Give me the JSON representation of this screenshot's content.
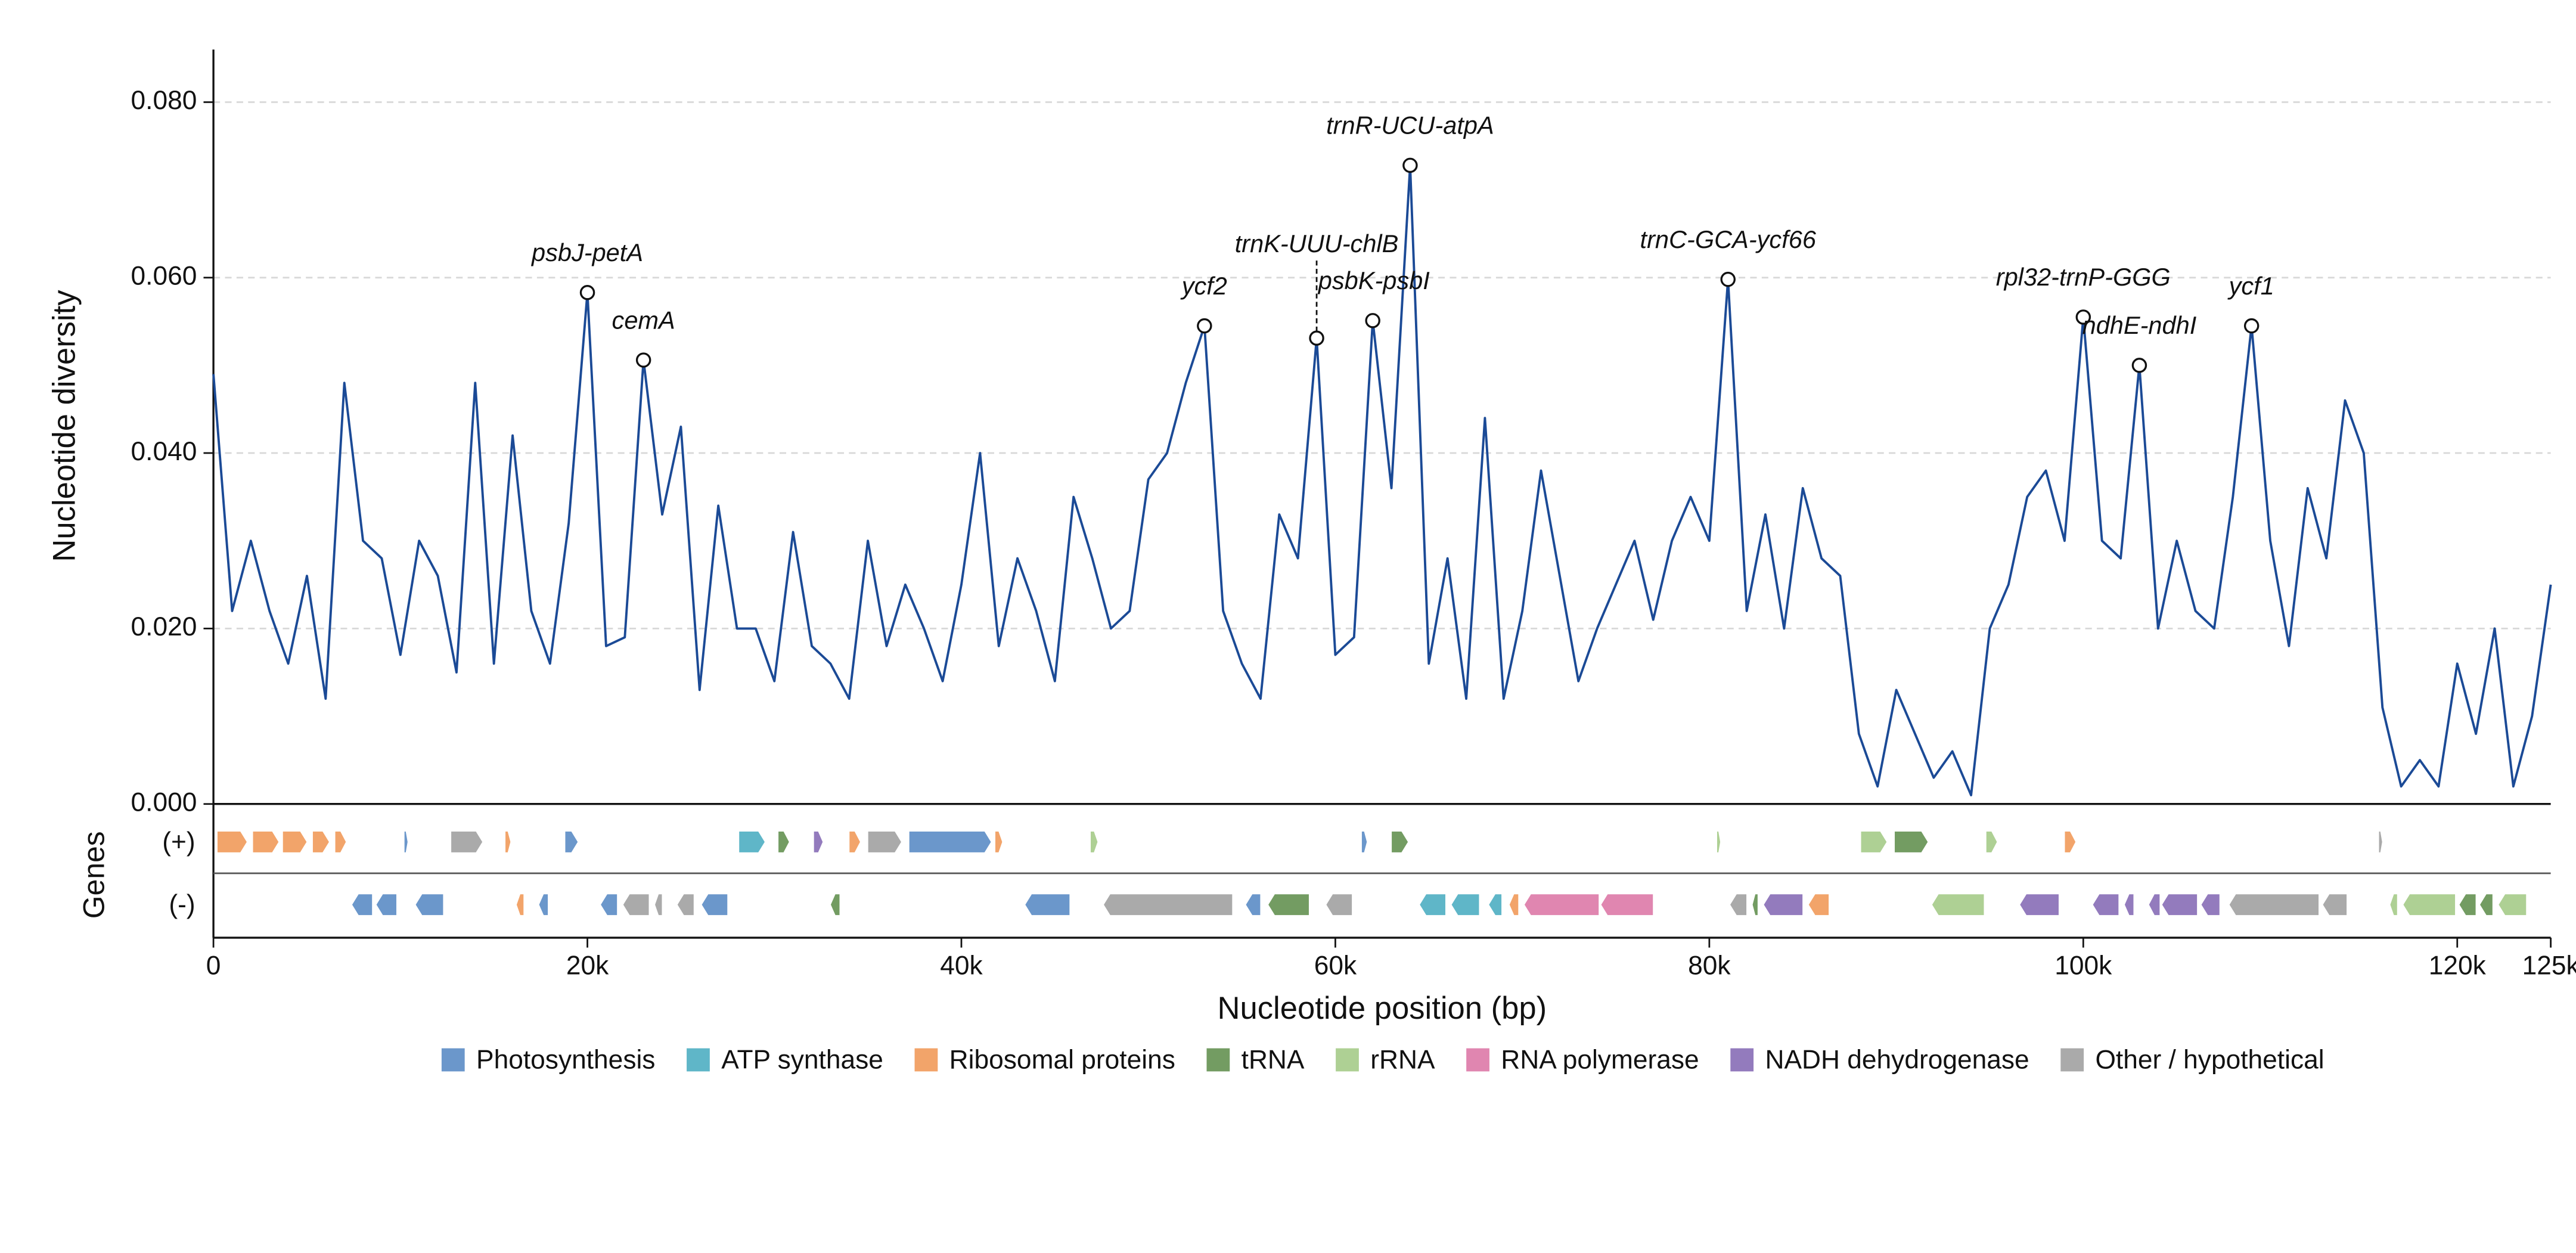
{
  "chart_data": {
    "type": "line",
    "ylabel": "Nucleotide diversity",
    "xlabel": "Nucleotide position (bp)",
    "track_label": "Genes",
    "strand_labels": [
      "(+)",
      "(-)"
    ],
    "xlim": [
      0,
      125000
    ],
    "ylim": [
      0,
      0.086
    ],
    "xticks": [
      0,
      {
        "value": 20000,
        "label": "20k"
      },
      {
        "value": 40000,
        "label": "40k"
      },
      {
        "value": 60000,
        "label": "60k"
      },
      {
        "value": 80000,
        "label": "80k"
      },
      {
        "value": 100000,
        "label": "100k"
      },
      {
        "value": 120000,
        "label": "120k"
      },
      {
        "value": 125000,
        "label": "125k"
      }
    ],
    "yticks": [
      {
        "value": 0,
        "label": "0.000"
      },
      {
        "value": 0.02,
        "label": "0.020"
      },
      {
        "value": 0.04,
        "label": "0.040"
      },
      {
        "value": 0.06,
        "label": "0.060"
      },
      {
        "value": 0.08,
        "label": "0.080"
      }
    ],
    "grid": true,
    "series": [
      {
        "color": "#1b4a96",
        "x": [
          0,
          1000,
          2000,
          3000,
          4000,
          5000,
          6000,
          7000,
          8000,
          9000,
          10000,
          11000,
          12000,
          13000,
          14000,
          15000,
          16000,
          17000,
          18000,
          19000,
          20000,
          21000,
          22000,
          23000,
          24000,
          25000,
          26000,
          27000,
          28000,
          29000,
          30000,
          31000,
          32000,
          33000,
          34000,
          35000,
          36000,
          37000,
          38000,
          39000,
          40000,
          41000,
          42000,
          43000,
          44000,
          45000,
          46000,
          47000,
          48000,
          49000,
          50000,
          51000,
          52000,
          53000,
          54000,
          55000,
          56000,
          57000,
          58000,
          59000,
          60000,
          61000,
          62000,
          63000,
          64000,
          65000,
          66000,
          67000,
          68000,
          69000,
          70000,
          71000,
          72000,
          73000,
          74000,
          75000,
          76000,
          77000,
          78000,
          79000,
          80000,
          81000,
          82000,
          83000,
          84000,
          85000,
          86000,
          87000,
          88000,
          89000,
          90000,
          91000,
          92000,
          93000,
          94000,
          95000,
          96000,
          97000,
          98000,
          99000,
          100000,
          101000,
          102000,
          103000,
          104000,
          105000,
          106000,
          107000,
          108000,
          109000,
          110000,
          111000,
          112000,
          113000,
          114000,
          115000,
          116000,
          117000,
          118000,
          119000,
          120000,
          121000,
          122000,
          123000,
          124000,
          125000
        ],
        "values": [
          0.049,
          0.022,
          0.03,
          0.022,
          0.016,
          0.026,
          0.012,
          0.048,
          0.03,
          0.028,
          0.017,
          0.03,
          0.026,
          0.015,
          0.048,
          0.016,
          0.042,
          0.022,
          0.016,
          0.032,
          0.0583,
          0.018,
          0.019,
          0.0506,
          0.033,
          0.043,
          0.013,
          0.034,
          0.02,
          0.02,
          0.014,
          0.031,
          0.018,
          0.016,
          0.012,
          0.03,
          0.018,
          0.025,
          0.02,
          0.014,
          0.025,
          0.04,
          0.018,
          0.028,
          0.022,
          0.014,
          0.035,
          0.028,
          0.02,
          0.022,
          0.037,
          0.04,
          0.048,
          0.0545,
          0.022,
          0.016,
          0.012,
          0.033,
          0.028,
          0.0531,
          0.017,
          0.019,
          0.0551,
          0.036,
          0.0728,
          0.016,
          0.028,
          0.012,
          0.044,
          0.012,
          0.022,
          0.038,
          0.026,
          0.014,
          0.02,
          0.025,
          0.03,
          0.021,
          0.03,
          0.035,
          0.03,
          0.0598,
          0.022,
          0.033,
          0.02,
          0.036,
          0.028,
          0.026,
          0.008,
          0.002,
          0.013,
          0.008,
          0.003,
          0.006,
          0.001,
          0.02,
          0.025,
          0.035,
          0.038,
          0.03,
          0.0555,
          0.03,
          0.028,
          0.05,
          0.02,
          0.03,
          0.022,
          0.02,
          0.035,
          0.0545,
          0.03,
          0.018,
          0.036,
          0.028,
          0.046,
          0.04,
          0.011,
          0.002,
          0.005,
          0.002,
          0.016,
          0.008,
          0.02,
          0.002,
          0.01,
          0.025
        ]
      }
    ],
    "annotations": [
      {
        "label": "psbJ-petA",
        "x": 20000,
        "y": 0.0583
      },
      {
        "label": "cemA",
        "x": 23000,
        "y": 0.0506
      },
      {
        "label": "ycf2",
        "x": 53000,
        "y": 0.0545
      },
      {
        "label": "trnK-UUU-chlB",
        "x": 59000,
        "y": 0.0531
      },
      {
        "label": "psbK-psbI",
        "x": 62000,
        "y": 0.0551
      },
      {
        "label": "trnR-UCU-atpA",
        "x": 64000,
        "y": 0.0728
      },
      {
        "label": "trnC-GCA-ycf66",
        "x": 81000,
        "y": 0.0598
      },
      {
        "label": "rpl32-trnP-GGG",
        "x": 100000,
        "y": 0.0555
      },
      {
        "label": "ndhE-ndhI",
        "x": 103000,
        "y": 0.05
      },
      {
        "label": "ycf1",
        "x": 109000,
        "y": 0.0545
      }
    ],
    "legend": [
      {
        "name": "Photosynthesis",
        "color": "#6b97cb"
      },
      {
        "name": "ATP synthase",
        "color": "#5fb6c8"
      },
      {
        "name": "Ribosomal proteins",
        "color": "#f2a46a"
      },
      {
        "name": "tRNA",
        "color": "#739c62"
      },
      {
        "name": "rRNA",
        "color": "#aed094"
      },
      {
        "name": "RNA polymerase",
        "color": "#e086b0"
      },
      {
        "name": "NADH dehydrogenase",
        "color": "#937bbd"
      },
      {
        "name": "Other / hypothetical",
        "color": "#aaaaaa"
      }
    ],
    "genes": [
      {
        "start": 200,
        "end": 1800,
        "strand": "+",
        "group": 2
      },
      {
        "start": 2100,
        "end": 3500,
        "strand": "+",
        "group": 2
      },
      {
        "start": 3700,
        "end": 5000,
        "strand": "+",
        "group": 2
      },
      {
        "start": 5300,
        "end": 6200,
        "strand": "+",
        "group": 2
      },
      {
        "start": 6500,
        "end": 7100,
        "strand": "+",
        "group": 2
      },
      {
        "start": 10200,
        "end": 10400,
        "strand": "+",
        "group": 0
      },
      {
        "start": 12700,
        "end": 14400,
        "strand": "+",
        "group": 7
      },
      {
        "start": 15600,
        "end": 15900,
        "strand": "+",
        "group": 2
      },
      {
        "start": 18800,
        "end": 19500,
        "strand": "+",
        "group": 0
      },
      {
        "start": 28100,
        "end": 29500,
        "strand": "+",
        "group": 1
      },
      {
        "start": 30200,
        "end": 30800,
        "strand": "+",
        "group": 3
      },
      {
        "start": 32100,
        "end": 32600,
        "strand": "+",
        "group": 6
      },
      {
        "start": 34000,
        "end": 34600,
        "strand": "+",
        "group": 2
      },
      {
        "start": 35000,
        "end": 36800,
        "strand": "+",
        "group": 7
      },
      {
        "start": 37200,
        "end": 41600,
        "strand": "+",
        "group": 0
      },
      {
        "start": 41800,
        "end": 42200,
        "strand": "+",
        "group": 2
      },
      {
        "start": 46900,
        "end": 47300,
        "strand": "+",
        "group": 4
      },
      {
        "start": 61400,
        "end": 61700,
        "strand": "+",
        "group": 0
      },
      {
        "start": 63000,
        "end": 63900,
        "strand": "+",
        "group": 3
      },
      {
        "start": 80400,
        "end": 80600,
        "strand": "+",
        "group": 4
      },
      {
        "start": 88100,
        "end": 89500,
        "strand": "+",
        "group": 4
      },
      {
        "start": 89900,
        "end": 91700,
        "strand": "+",
        "group": 3
      },
      {
        "start": 94800,
        "end": 95400,
        "strand": "+",
        "group": 4
      },
      {
        "start": 99000,
        "end": 99600,
        "strand": "+",
        "group": 2
      },
      {
        "start": 115800,
        "end": 116000,
        "strand": "+",
        "group": 7
      },
      {
        "start": 7400,
        "end": 8500,
        "strand": "-",
        "group": 0
      },
      {
        "start": 8700,
        "end": 9800,
        "strand": "-",
        "group": 0
      },
      {
        "start": 10800,
        "end": 12300,
        "strand": "-",
        "group": 0
      },
      {
        "start": 16200,
        "end": 16600,
        "strand": "-",
        "group": 2
      },
      {
        "start": 17400,
        "end": 17900,
        "strand": "-",
        "group": 0
      },
      {
        "start": 20700,
        "end": 21600,
        "strand": "-",
        "group": 0
      },
      {
        "start": 21900,
        "end": 23300,
        "strand": "-",
        "group": 7
      },
      {
        "start": 23600,
        "end": 24000,
        "strand": "-",
        "group": 7
      },
      {
        "start": 24800,
        "end": 25700,
        "strand": "-",
        "group": 7
      },
      {
        "start": 26100,
        "end": 27500,
        "strand": "-",
        "group": 0
      },
      {
        "start": 33000,
        "end": 33500,
        "strand": "-",
        "group": 3
      },
      {
        "start": 43400,
        "end": 45800,
        "strand": "-",
        "group": 0
      },
      {
        "start": 47600,
        "end": 54500,
        "strand": "-",
        "group": 7
      },
      {
        "start": 55200,
        "end": 56000,
        "strand": "-",
        "group": 0
      },
      {
        "start": 56400,
        "end": 58600,
        "strand": "-",
        "group": 3
      },
      {
        "start": 59500,
        "end": 60900,
        "strand": "-",
        "group": 7
      },
      {
        "start": 64500,
        "end": 65900,
        "strand": "-",
        "group": 1
      },
      {
        "start": 66200,
        "end": 67700,
        "strand": "-",
        "group": 1
      },
      {
        "start": 68200,
        "end": 68900,
        "strand": "-",
        "group": 1
      },
      {
        "start": 69300,
        "end": 69800,
        "strand": "-",
        "group": 2
      },
      {
        "start": 70100,
        "end": 74100,
        "strand": "-",
        "group": 5
      },
      {
        "start": 74200,
        "end": 77000,
        "strand": "-",
        "group": 5
      },
      {
        "start": 81100,
        "end": 82000,
        "strand": "-",
        "group": 7
      },
      {
        "start": 82300,
        "end": 82600,
        "strand": "-",
        "group": 3
      },
      {
        "start": 82900,
        "end": 85000,
        "strand": "-",
        "group": 6
      },
      {
        "start": 85300,
        "end": 86400,
        "strand": "-",
        "group": 2
      },
      {
        "start": 91900,
        "end": 94700,
        "strand": "-",
        "group": 4
      },
      {
        "start": 96600,
        "end": 98700,
        "strand": "-",
        "group": 6
      },
      {
        "start": 100500,
        "end": 101900,
        "strand": "-",
        "group": 6
      },
      {
        "start": 102200,
        "end": 102700,
        "strand": "-",
        "group": 6
      },
      {
        "start": 103500,
        "end": 104100,
        "strand": "-",
        "group": 6
      },
      {
        "start": 104200,
        "end": 106100,
        "strand": "-",
        "group": 6
      },
      {
        "start": 106300,
        "end": 107300,
        "strand": "-",
        "group": 6
      },
      {
        "start": 107800,
        "end": 112600,
        "strand": "-",
        "group": 7
      },
      {
        "start": 112800,
        "end": 114100,
        "strand": "-",
        "group": 7
      },
      {
        "start": 116400,
        "end": 116800,
        "strand": "-",
        "group": 4
      },
      {
        "start": 117100,
        "end": 119900,
        "strand": "-",
        "group": 4
      },
      {
        "start": 120100,
        "end": 121000,
        "strand": "-",
        "group": 3
      },
      {
        "start": 121200,
        "end": 121900,
        "strand": "-",
        "group": 3
      },
      {
        "start": 122200,
        "end": 123700,
        "strand": "-",
        "group": 4
      }
    ]
  }
}
